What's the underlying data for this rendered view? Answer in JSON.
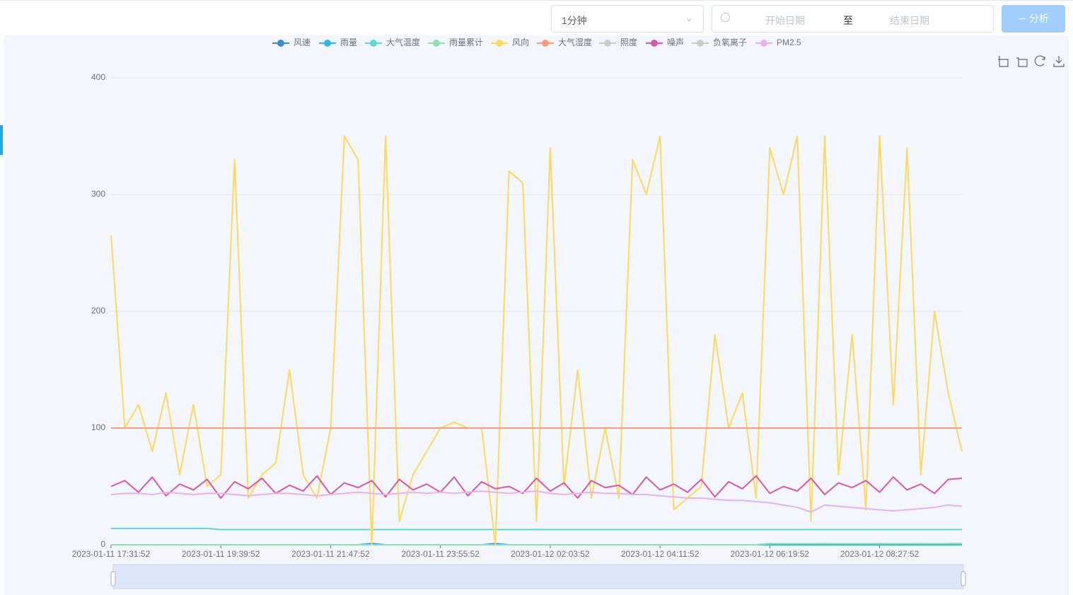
{
  "toolbar": {
    "interval": "1分钟",
    "start_placeholder": "开始日期",
    "separator": "至",
    "end_placeholder": "结束日期",
    "button": "分析"
  },
  "chart_data": {
    "type": "line",
    "categories": [
      "2023-01-11 17:31:52",
      null,
      null,
      null,
      null,
      null,
      null,
      null,
      "2023-01-11 19:39:52",
      null,
      null,
      null,
      null,
      null,
      null,
      null,
      "2023-01-11 21:47:52",
      null,
      null,
      null,
      null,
      null,
      null,
      null,
      "2023-01-11 23:55:52",
      null,
      null,
      null,
      null,
      null,
      null,
      null,
      "2023-01-12 02:03:52",
      null,
      null,
      null,
      null,
      null,
      null,
      null,
      "2023-01-12 04:11:52",
      null,
      null,
      null,
      null,
      null,
      null,
      null,
      "2023-01-12 06:19:52",
      null,
      null,
      null,
      null,
      null,
      null,
      null,
      "2023-01-12 08:27:52",
      null,
      null,
      null,
      null,
      null,
      null
    ],
    "ylim": [
      0,
      400
    ],
    "yticks": [
      0,
      100,
      200,
      300,
      400
    ],
    "grid": true,
    "series": [
      {
        "name": "风速",
        "color": "#3a8fd1",
        "values": [
          0,
          0,
          0,
          0,
          0,
          0,
          0,
          0,
          0,
          0,
          0,
          0,
          0,
          0,
          0,
          0,
          0,
          0,
          0,
          1,
          0,
          0,
          0,
          0,
          0,
          0,
          0,
          0,
          1,
          0,
          0,
          0,
          0,
          0,
          0,
          0,
          0,
          0,
          0,
          0,
          0,
          0,
          0,
          0,
          0,
          0,
          0,
          0,
          1,
          0,
          0,
          0,
          1,
          0,
          0,
          0,
          1,
          0,
          0,
          1,
          0,
          1,
          1
        ]
      },
      {
        "name": "雨量",
        "color": "#2db7e6",
        "values": [
          0,
          0,
          0,
          0,
          0,
          0,
          0,
          0,
          0,
          0,
          0,
          0,
          0,
          0,
          0,
          0,
          0,
          0,
          0,
          0,
          0,
          0,
          0,
          0,
          0,
          0,
          0,
          0,
          0,
          0,
          0,
          0,
          0,
          0,
          0,
          0,
          0,
          0,
          0,
          0,
          0,
          0,
          0,
          0,
          0,
          0,
          0,
          0,
          0,
          0,
          0,
          0,
          0,
          0,
          0,
          0,
          0,
          0,
          0,
          0,
          0,
          0,
          0
        ]
      },
      {
        "name": "大气温度",
        "color": "#5cd6d6",
        "values": [
          14,
          14,
          14,
          14,
          14,
          14,
          14,
          14,
          13,
          13,
          13,
          13,
          13,
          13,
          13,
          13,
          13,
          13,
          13,
          13,
          13,
          13,
          13,
          13,
          13,
          13,
          13,
          13,
          13,
          13,
          13,
          13,
          13,
          13,
          13,
          13,
          13,
          13,
          13,
          13,
          13,
          13,
          13,
          13,
          13,
          13,
          13,
          13,
          13,
          13,
          13,
          13,
          13,
          13,
          13,
          13,
          13,
          13,
          13,
          13,
          13,
          13,
          13
        ]
      },
      {
        "name": "雨量累计",
        "color": "#91e0b0",
        "values": [
          0,
          0,
          0,
          0,
          0,
          0,
          0,
          0,
          0,
          0,
          0,
          0,
          0,
          0,
          0,
          0,
          0,
          0,
          0,
          0,
          0,
          0,
          0,
          0,
          0,
          0,
          0,
          0,
          0,
          0,
          0,
          0,
          0,
          0,
          0,
          0,
          0,
          0,
          0,
          0,
          0,
          0,
          0,
          0,
          0,
          0,
          0,
          0,
          1,
          1,
          1,
          1,
          1,
          1,
          1,
          1,
          1,
          1,
          1,
          1,
          1,
          1,
          1
        ]
      },
      {
        "name": "风向",
        "color": "#ffd95c",
        "values": [
          265,
          100,
          120,
          80,
          130,
          60,
          120,
          50,
          60,
          330,
          40,
          60,
          70,
          150,
          60,
          40,
          100,
          350,
          330,
          0,
          350,
          20,
          60,
          80,
          100,
          105,
          100,
          100,
          0,
          320,
          310,
          20,
          340,
          50,
          150,
          40,
          100,
          40,
          330,
          300,
          350,
          30,
          40,
          50,
          180,
          100,
          130,
          40,
          340,
          300,
          350,
          20,
          350,
          60,
          180,
          30,
          350,
          120,
          340,
          60,
          200,
          130,
          80
        ]
      },
      {
        "name": "大气湿度",
        "color": "#ff9a7a",
        "values": [
          100,
          100,
          100,
          100,
          100,
          100,
          100,
          100,
          100,
          100,
          100,
          100,
          100,
          100,
          100,
          100,
          100,
          100,
          100,
          100,
          100,
          100,
          100,
          100,
          100,
          100,
          100,
          100,
          100,
          100,
          100,
          100,
          100,
          100,
          100,
          100,
          100,
          100,
          100,
          100,
          100,
          100,
          100,
          100,
          100,
          100,
          100,
          100,
          100,
          100,
          100,
          100,
          100,
          100,
          100,
          100,
          100,
          100,
          100,
          100,
          100,
          100,
          100
        ]
      },
      {
        "name": "照度",
        "color": "#cccccc",
        "selected": false
      },
      {
        "name": "噪声",
        "color": "#d957a7",
        "values": [
          50,
          55,
          45,
          58,
          42,
          52,
          47,
          56,
          40,
          54,
          48,
          57,
          44,
          51,
          46,
          59,
          43,
          53,
          49,
          55,
          41,
          56,
          47,
          52,
          45,
          58,
          42,
          54,
          48,
          50,
          44,
          57,
          46,
          53,
          40,
          55,
          49,
          51,
          43,
          58,
          47,
          52,
          45,
          56,
          41,
          54,
          48,
          59,
          44,
          50,
          46,
          57,
          43,
          53,
          49,
          55,
          45,
          58,
          47,
          52,
          44,
          56,
          57
        ]
      },
      {
        "name": "负氧离子",
        "color": "#cccccc",
        "selected": false
      },
      {
        "name": "PM2.5",
        "color": "#e6b3ee",
        "values": [
          43,
          44,
          44,
          43,
          45,
          44,
          43,
          44,
          44,
          43,
          42,
          43,
          44,
          44,
          43,
          42,
          43,
          44,
          45,
          44,
          43,
          44,
          45,
          44,
          45,
          44,
          45,
          46,
          45,
          44,
          45,
          46,
          44,
          43,
          44,
          45,
          44,
          44,
          43,
          43,
          42,
          41,
          40,
          40,
          39,
          38,
          38,
          37,
          36,
          34,
          32,
          28,
          34,
          33,
          32,
          31,
          30,
          29,
          30,
          31,
          32,
          34,
          33
        ]
      }
    ]
  }
}
